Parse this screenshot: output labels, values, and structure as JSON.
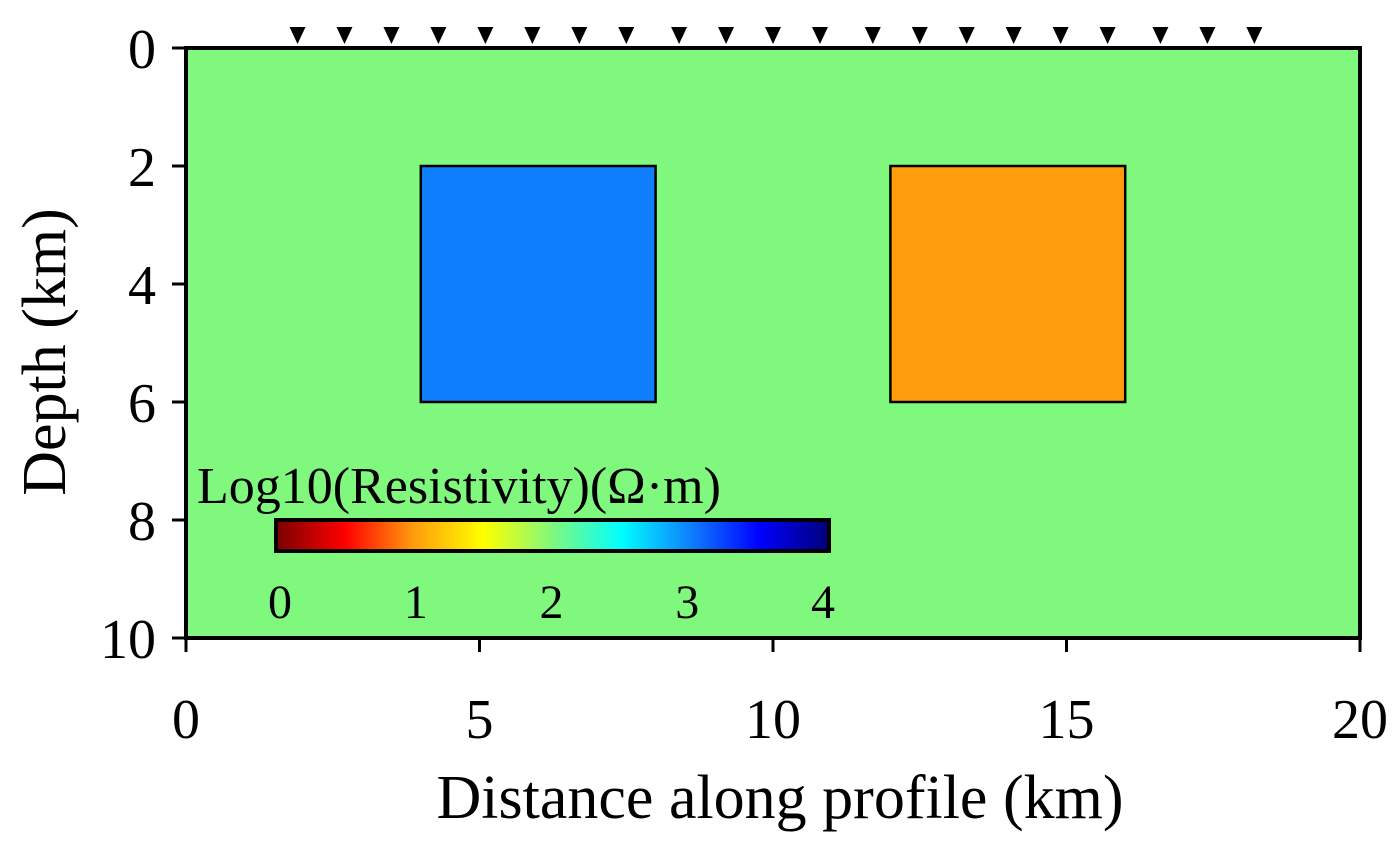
{
  "chart_data": {
    "type": "heatmap",
    "xlabel": "Distance along profile (km)",
    "ylabel": "Depth (km)",
    "xlim": [
      0,
      20
    ],
    "ylim": [
      0,
      10
    ],
    "y_inverted": true,
    "x_ticks": [
      "0",
      "5",
      "10",
      "15",
      "20"
    ],
    "y_ticks": [
      "0",
      "2",
      "4",
      "6",
      "8",
      "10"
    ],
    "background": {
      "log10_resistivity": 2,
      "color": "#80f87d"
    },
    "blocks": [
      {
        "x": [
          4,
          8
        ],
        "y": [
          2,
          6
        ],
        "log10_resistivity": 3,
        "color": "#0f7ffd"
      },
      {
        "x": [
          12,
          16
        ],
        "y": [
          2,
          6
        ],
        "log10_resistivity": 1,
        "color": "#ff9d0d"
      }
    ],
    "stations_km": [
      1.9,
      2.7,
      3.5,
      4.3,
      5.1,
      5.9,
      6.7,
      7.5,
      8.4,
      9.2,
      10.0,
      10.8,
      11.7,
      12.5,
      13.3,
      14.1,
      14.9,
      15.7,
      16.6,
      17.4,
      18.2
    ],
    "colorbar": {
      "title": "Log10(Resistivity)(Ω·m)",
      "ticks": [
        "0",
        "1",
        "2",
        "3",
        "4"
      ],
      "min": 0,
      "max": 4,
      "colormap": "jet_r",
      "placement": "lower-left inside plot",
      "stops": [
        "#7a0000",
        "#ff0000",
        "#ff9d0d",
        "#ffff00",
        "#80f87d",
        "#00ffff",
        "#0f7ffd",
        "#0000ff",
        "#00007a"
      ]
    },
    "grid": false
  }
}
